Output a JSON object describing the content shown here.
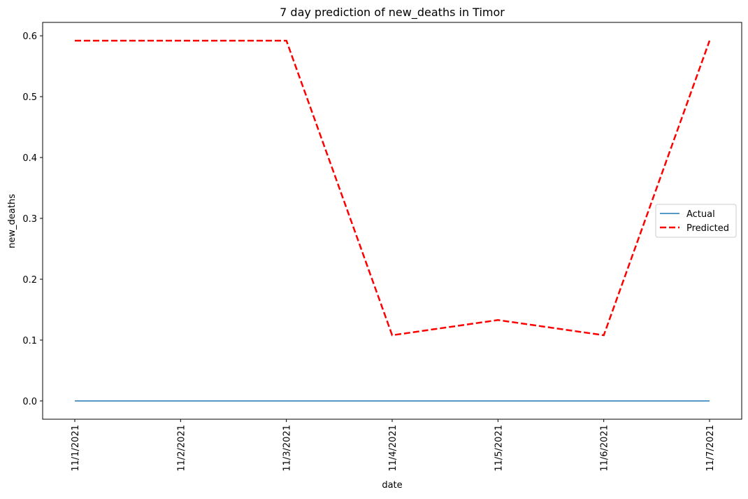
{
  "chart_data": {
    "type": "line",
    "title": "7 day prediction of new_deaths in Timor",
    "xlabel": "date",
    "ylabel": "new_deaths",
    "categories": [
      "11/1/2021",
      "11/2/2021",
      "11/3/2021",
      "11/4/2021",
      "11/5/2021",
      "11/6/2021",
      "11/7/2021"
    ],
    "ylim": [
      -0.03,
      0.622
    ],
    "yticks": [
      0.0,
      0.1,
      0.2,
      0.3,
      0.4,
      0.5,
      0.6
    ],
    "ytick_labels": [
      "0.0",
      "0.1",
      "0.2",
      "0.3",
      "0.4",
      "0.5",
      "0.6"
    ],
    "grid": false,
    "legend_position": "center-right",
    "series": [
      {
        "name": "Actual",
        "color": "#1f77b4",
        "style": "solid",
        "values": [
          0,
          0,
          0,
          0,
          0,
          0,
          0
        ]
      },
      {
        "name": "Predicted",
        "color": "#ff0000",
        "style": "dashed",
        "values": [
          0.592,
          0.592,
          0.592,
          0.108,
          0.133,
          0.108,
          0.592
        ]
      }
    ]
  }
}
